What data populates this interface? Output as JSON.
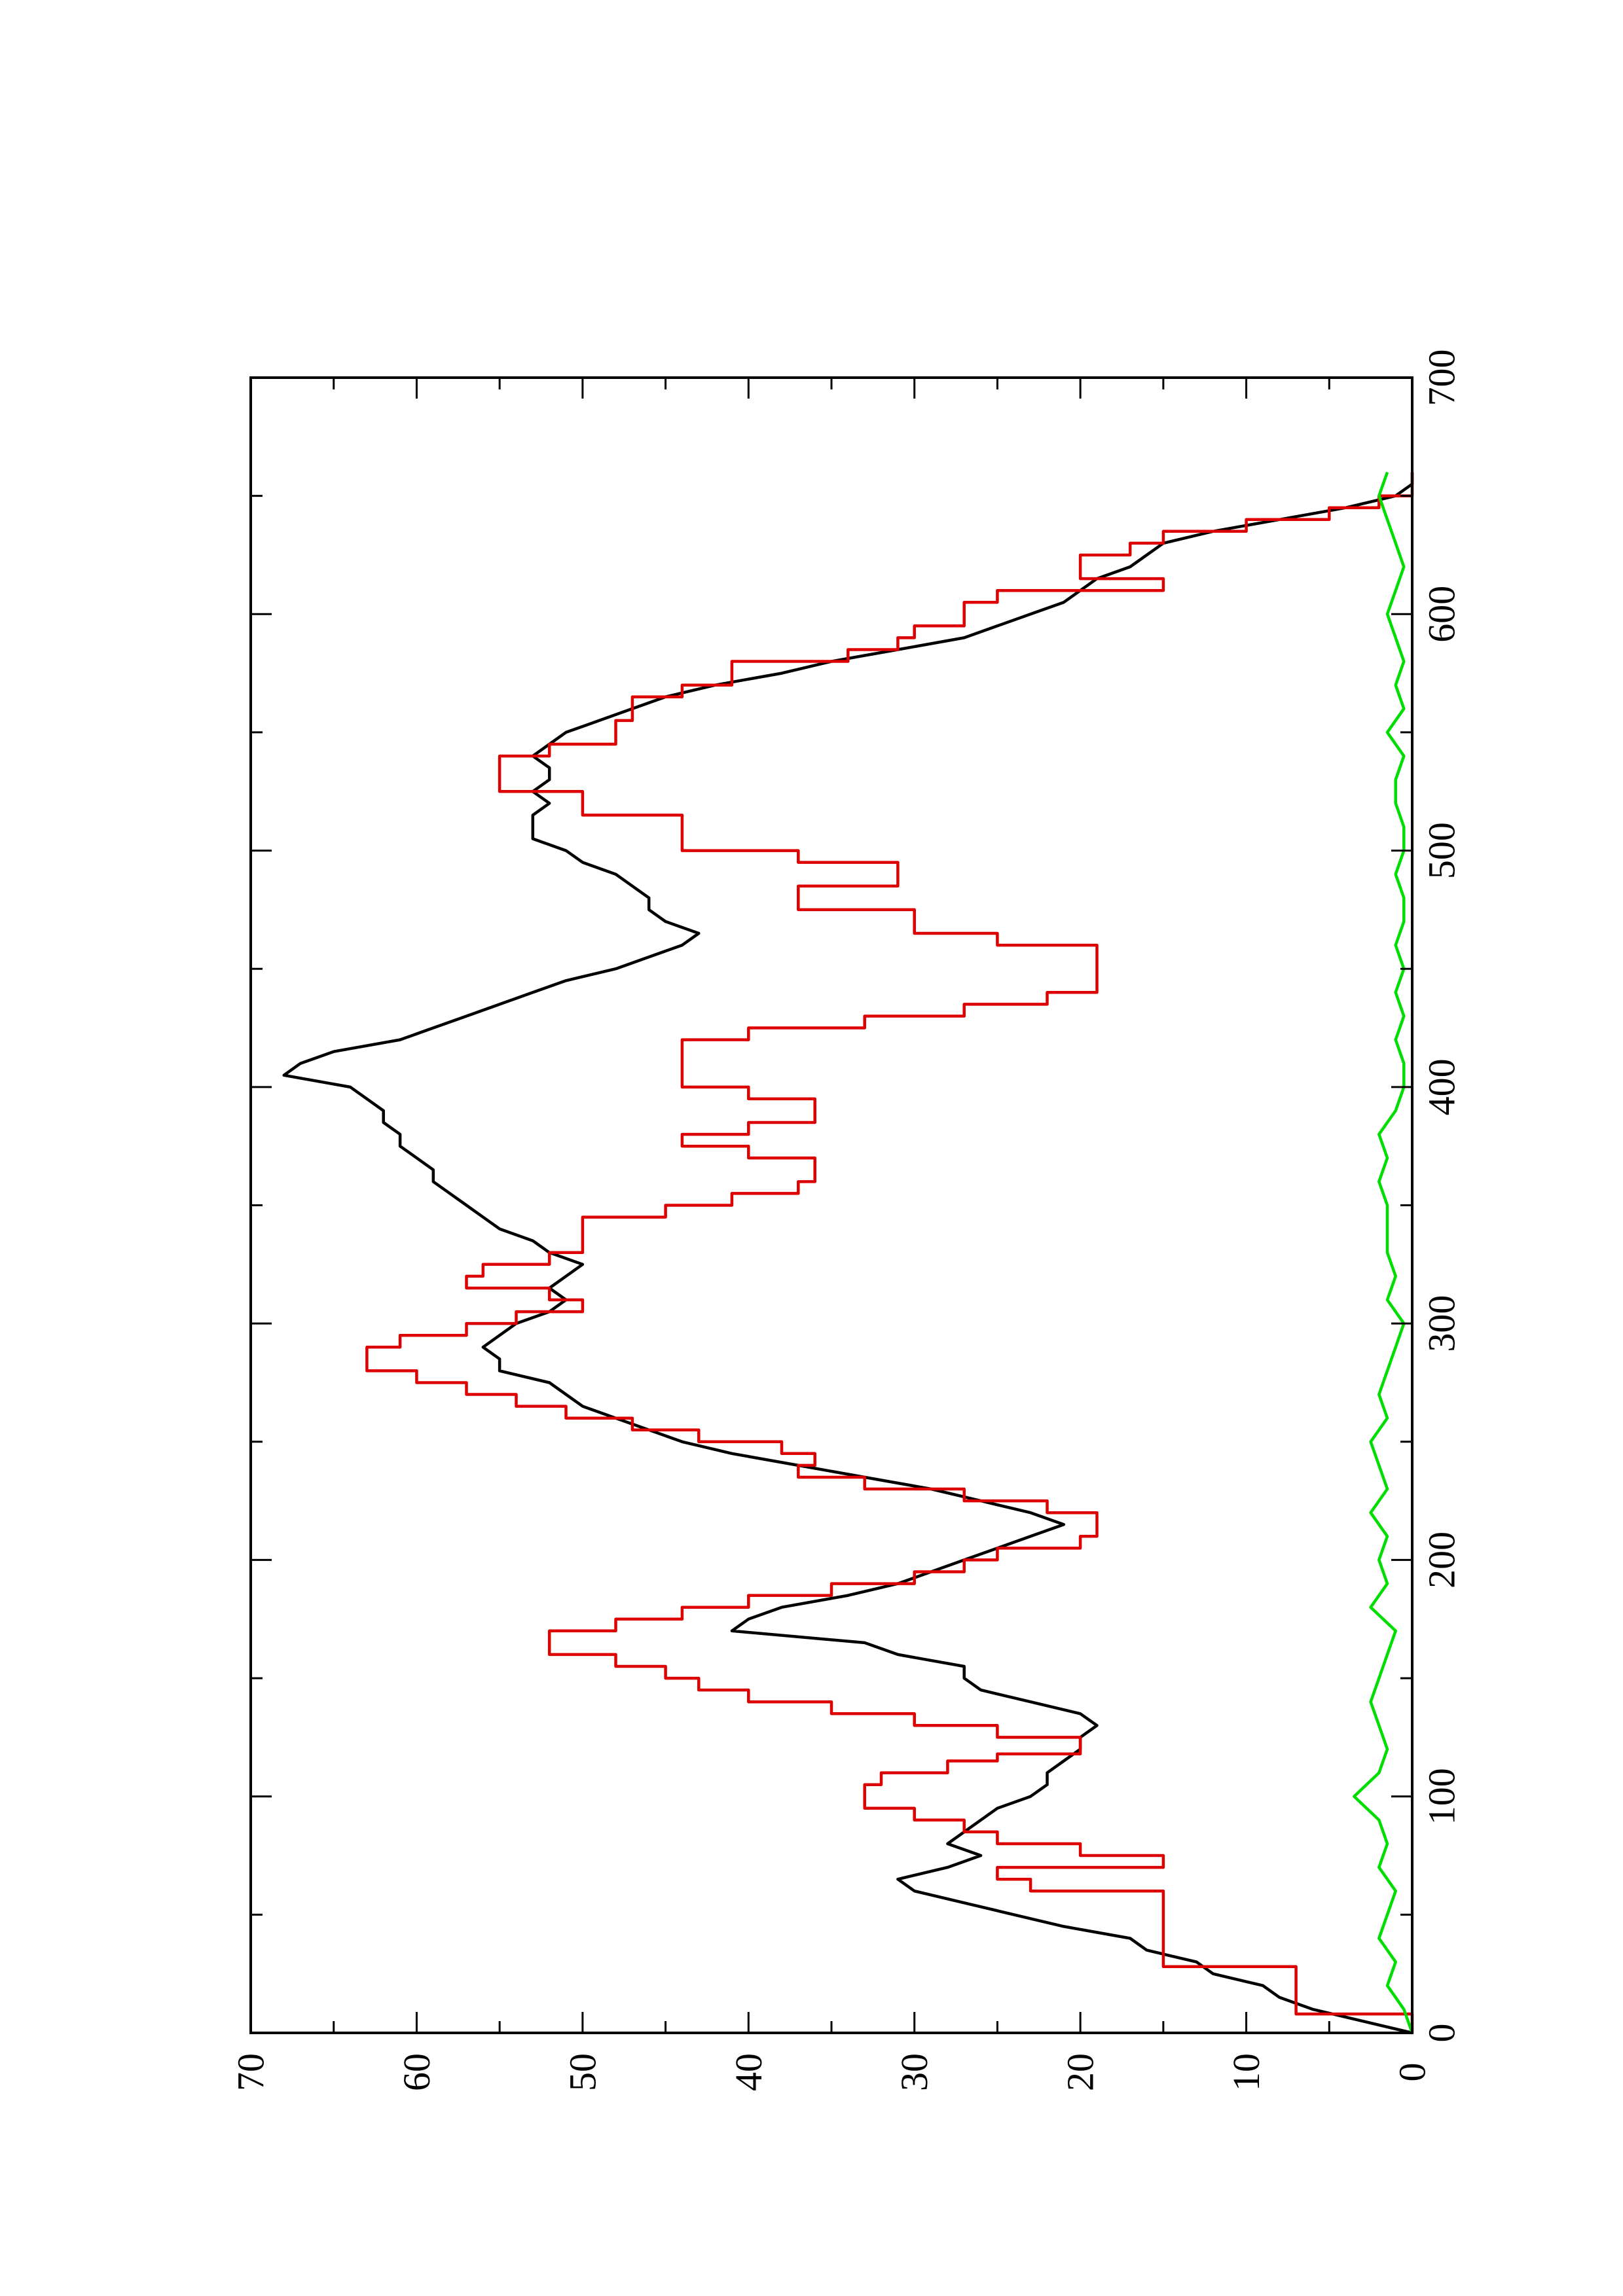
{
  "chart_data": {
    "type": "line",
    "orientation": "rotated 90 degrees counter-clockwise",
    "title": "",
    "xlabel": "",
    "ylabel": "",
    "xlim": [
      0,
      700
    ],
    "ylim": [
      0,
      70
    ],
    "x_ticks": [
      "0",
      "100",
      "200",
      "300",
      "400",
      "500",
      "600",
      "700"
    ],
    "y_ticks": [
      "0",
      "10",
      "20",
      "30",
      "40",
      "50",
      "60",
      "70"
    ],
    "grid": false,
    "legend": "none",
    "series": [
      {
        "color": "#000000",
        "style": "line",
        "x": [
          0,
          5,
          10,
          15,
          20,
          25,
          30,
          35,
          40,
          45,
          50,
          55,
          60,
          65,
          70,
          75,
          80,
          85,
          90,
          95,
          100,
          105,
          110,
          115,
          120,
          125,
          130,
          135,
          140,
          145,
          150,
          155,
          160,
          165,
          170,
          175,
          180,
          185,
          190,
          195,
          200,
          205,
          210,
          215,
          220,
          225,
          230,
          235,
          240,
          245,
          250,
          255,
          260,
          265,
          270,
          275,
          280,
          285,
          290,
          295,
          300,
          305,
          310,
          315,
          320,
          325,
          330,
          335,
          340,
          345,
          350,
          355,
          360,
          365,
          370,
          375,
          380,
          385,
          390,
          395,
          400,
          405,
          410,
          415,
          420,
          425,
          430,
          435,
          440,
          445,
          450,
          455,
          460,
          465,
          470,
          475,
          480,
          485,
          490,
          495,
          500,
          505,
          510,
          515,
          520,
          525,
          530,
          535,
          540,
          545,
          550,
          555,
          560,
          565,
          570,
          575,
          580,
          585,
          590,
          595,
          600,
          605,
          610,
          615,
          620,
          625,
          630,
          635,
          640,
          645,
          650,
          655,
          660
        ],
        "y": [
          0,
          3,
          6,
          8,
          9,
          12,
          13,
          16,
          17,
          21,
          24,
          27,
          30,
          31,
          28,
          26,
          28,
          27,
          26,
          25,
          23,
          22,
          22,
          21,
          20,
          20,
          19,
          20,
          23,
          26,
          27,
          27,
          31,
          33,
          41,
          40,
          38,
          34,
          31,
          29,
          27,
          25,
          23,
          21,
          23,
          26,
          29,
          33,
          37,
          41,
          44,
          46,
          48,
          50,
          51,
          52,
          55,
          55,
          56,
          55,
          54,
          52,
          51,
          52,
          51,
          50,
          52,
          53,
          55,
          56,
          57,
          58,
          59,
          59,
          60,
          61,
          61,
          62,
          62,
          63,
          64,
          68,
          67,
          65,
          61,
          59,
          57,
          55,
          53,
          51,
          48,
          46,
          44,
          43,
          45,
          46,
          46,
          47,
          48,
          50,
          51,
          53,
          53,
          53,
          52,
          53,
          52,
          52,
          53,
          52,
          51,
          49,
          47,
          45,
          42,
          38,
          35,
          31,
          27,
          25,
          23,
          21,
          20,
          19,
          17,
          16,
          15,
          12,
          8,
          4,
          1,
          0,
          0
        ]
      },
      {
        "color": "#dd0000",
        "style": "step",
        "x": [
          0,
          8,
          10,
          25,
          28,
          45,
          55,
          60,
          65,
          70,
          75,
          80,
          85,
          90,
          95,
          100,
          105,
          110,
          115,
          118,
          120,
          125,
          130,
          135,
          140,
          145,
          150,
          155,
          160,
          165,
          170,
          175,
          180,
          185,
          190,
          195,
          200,
          205,
          210,
          215,
          220,
          225,
          230,
          235,
          240,
          245,
          250,
          255,
          260,
          265,
          270,
          275,
          280,
          285,
          290,
          295,
          300,
          305,
          310,
          315,
          320,
          325,
          330,
          335,
          340,
          345,
          350,
          355,
          360,
          365,
          370,
          375,
          380,
          385,
          390,
          395,
          400,
          405,
          410,
          415,
          420,
          425,
          430,
          435,
          440,
          445,
          450,
          455,
          460,
          465,
          470,
          475,
          480,
          485,
          490,
          495,
          500,
          505,
          510,
          515,
          520,
          525,
          530,
          535,
          540,
          545,
          550,
          555,
          560,
          565,
          570,
          575,
          580,
          585,
          590,
          595,
          600,
          605,
          610,
          615,
          620,
          625,
          630,
          635,
          640,
          645,
          650,
          655,
          660
        ],
        "y": [
          0,
          7,
          7,
          7,
          15,
          15,
          15,
          23,
          25,
          15,
          20,
          25,
          27,
          30,
          33,
          33,
          32,
          28,
          25,
          20,
          20,
          25,
          30,
          35,
          40,
          43,
          45,
          48,
          52,
          52,
          48,
          44,
          40,
          35,
          30,
          27,
          25,
          20,
          19,
          19,
          22,
          27,
          33,
          37,
          36,
          38,
          43,
          47,
          51,
          54,
          57,
          60,
          63,
          63,
          61,
          57,
          54,
          50,
          52,
          57,
          56,
          52,
          50,
          50,
          50,
          45,
          41,
          37,
          36,
          36,
          40,
          44,
          40,
          36,
          36,
          40,
          44,
          44,
          44,
          44,
          40,
          33,
          27,
          22,
          19,
          19,
          19,
          19,
          25,
          30,
          30,
          37,
          37,
          31,
          31,
          37,
          44,
          44,
          44,
          50,
          50,
          55,
          55,
          55,
          52,
          48,
          48,
          47,
          47,
          44,
          41,
          41,
          34,
          31,
          30,
          27,
          27,
          25,
          15,
          20,
          20,
          17,
          15,
          10,
          5,
          2,
          0,
          0,
          0
        ]
      },
      {
        "color": "#00dd00",
        "style": "line",
        "x": [
          0,
          10,
          20,
          30,
          40,
          50,
          60,
          70,
          80,
          90,
          100,
          110,
          120,
          130,
          140,
          150,
          160,
          170,
          180,
          190,
          200,
          210,
          220,
          230,
          240,
          250,
          260,
          270,
          280,
          290,
          300,
          310,
          320,
          330,
          340,
          350,
          360,
          370,
          380,
          390,
          400,
          410,
          420,
          430,
          440,
          450,
          460,
          470,
          480,
          490,
          500,
          510,
          520,
          530,
          540,
          550,
          560,
          570,
          580,
          590,
          600,
          610,
          620,
          630,
          640,
          650,
          660
        ],
        "y": [
          0,
          0.5,
          1.5,
          1,
          2,
          1.5,
          1,
          2,
          1.5,
          2,
          3.5,
          2,
          1.5,
          2,
          2.5,
          2,
          1.5,
          1,
          2.5,
          1.5,
          2,
          1.5,
          2.5,
          1.5,
          2,
          2.5,
          1.5,
          2,
          1.5,
          1,
          0.5,
          1.5,
          1,
          1.5,
          1.5,
          1.5,
          2,
          1.5,
          2,
          1,
          0.5,
          0.5,
          1,
          0.5,
          1,
          0.5,
          1,
          0.5,
          0.5,
          1,
          0.5,
          0.5,
          1,
          1,
          0.5,
          1.5,
          0.5,
          1,
          0.5,
          1,
          1.5,
          1,
          0.5,
          1,
          1.5,
          2,
          1.5
        ]
      }
    ]
  }
}
